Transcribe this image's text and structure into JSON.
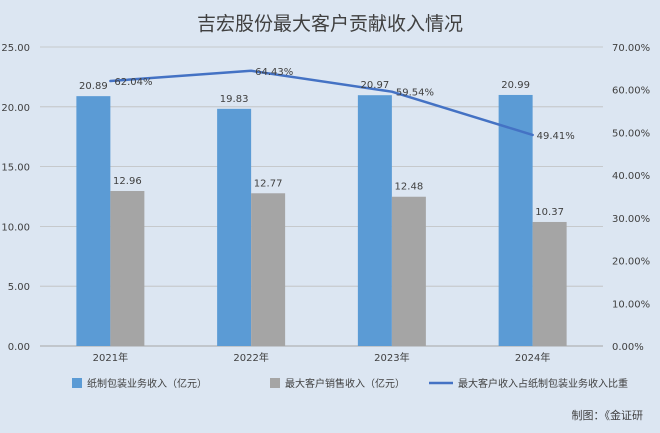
{
  "chart_data": {
    "type": "bar",
    "title": "吉宏股份最大客户贡献收入情况",
    "categories": [
      "2021年",
      "2022年",
      "2023年",
      "2024年"
    ],
    "series": [
      {
        "name": "纸制包装业务收入（亿元）",
        "type": "bar",
        "axis": "left",
        "color": "#5b9bd5",
        "values": [
          20.89,
          19.83,
          20.97,
          20.99
        ],
        "labels": [
          "20.89",
          "19.83",
          "20.97",
          "20.99"
        ]
      },
      {
        "name": "最大客户销售收入（亿元）",
        "type": "bar",
        "axis": "left",
        "color": "#a5a5a5",
        "values": [
          12.96,
          12.77,
          12.48,
          10.37
        ],
        "labels": [
          "12.96",
          "12.77",
          "12.48",
          "10.37"
        ]
      },
      {
        "name": "最大客户收入占纸制包装业务收入比重",
        "type": "line",
        "axis": "right",
        "color": "#4472c4",
        "values": [
          62.04,
          64.43,
          59.54,
          49.41
        ],
        "labels": [
          "62.04%",
          "64.43%",
          "59.54%",
          "49.41%"
        ]
      }
    ],
    "y_left": {
      "min": 0,
      "max": 25,
      "ticks": [
        "0.00",
        "5.00",
        "10.00",
        "15.00",
        "20.00",
        "25.00"
      ],
      "tick_values": [
        0,
        5,
        10,
        15,
        20,
        25
      ]
    },
    "y_right": {
      "min": 0,
      "max": 70,
      "ticks": [
        "0.00%",
        "10.00%",
        "20.00%",
        "30.00%",
        "40.00%",
        "50.00%",
        "60.00%",
        "70.00%"
      ],
      "tick_values": [
        0,
        10,
        20,
        30,
        40,
        50,
        60,
        70
      ]
    },
    "grid": true,
    "legend_position": "bottom"
  },
  "credit": "制图：《金证研"
}
